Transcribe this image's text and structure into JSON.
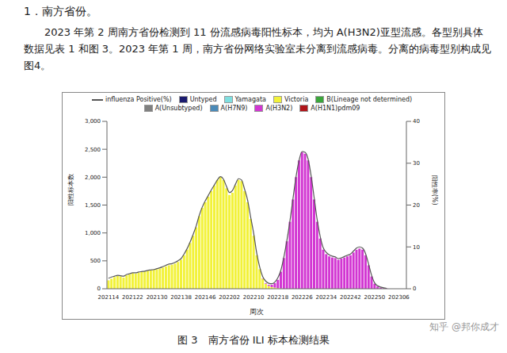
{
  "heading": "1．南方省份。",
  "paragraph": "2023 年第 2 周南方省份检测到 11 份流感病毒阳性标本，均为 A(H3N2)亚型流感。各型别具体数据见表 1 和图 3。2023 年第 1 周，南方省份网络实验室未分离到流感病毒。分离的病毒型别构成见图4。",
  "caption": "图 3　南方省份 ILI 标本检测结果",
  "watermark": "知乎 @邦你成才",
  "chart_data": {
    "type": "bar",
    "stacked": true,
    "grid": false,
    "legend": "top",
    "x_label": "周次",
    "y_label": "阳性标本数",
    "y2_label": "阳性率(%)",
    "categories": [
      "202114",
      null,
      null,
      null,
      null,
      null,
      null,
      null,
      "202122",
      null,
      null,
      null,
      null,
      null,
      null,
      null,
      "202130",
      null,
      null,
      null,
      null,
      null,
      null,
      null,
      "202138",
      null,
      null,
      null,
      null,
      null,
      null,
      null,
      "202146",
      null,
      null,
      null,
      null,
      null,
      null,
      null,
      "202202",
      null,
      null,
      null,
      null,
      null,
      null,
      null,
      "202210",
      null,
      null,
      null,
      null,
      null,
      null,
      null,
      "202218",
      null,
      null,
      null,
      null,
      null,
      null,
      null,
      "202226",
      null,
      null,
      null,
      null,
      null,
      null,
      null,
      "202234",
      null,
      null,
      null,
      null,
      null,
      null,
      null,
      "202242",
      null,
      null,
      null,
      null,
      null,
      null,
      null,
      "202250",
      null,
      null,
      null,
      null,
      null,
      null,
      null,
      "202306",
      null,
      null
    ],
    "ylim": [
      0,
      3000
    ],
    "yticks": [
      0,
      500,
      {
        "value": 1000,
        "label": "1,000"
      },
      {
        "value": 1500,
        "label": "1,500"
      },
      {
        "value": 2000,
        "label": "2,000"
      },
      {
        "value": 2500,
        "label": "2,500"
      },
      {
        "value": 3000,
        "label": "3,000"
      }
    ],
    "y2lim": [
      0,
      40
    ],
    "y2ticks": [
      0,
      10,
      20,
      30,
      40
    ],
    "series": [
      {
        "name": "influenza Positive(%)",
        "type": "line",
        "axis": "y2",
        "color": "#555555",
        "values": [
          2.5,
          2.8,
          3.0,
          3.2,
          3.1,
          3.0,
          3.4,
          3.6,
          3.8,
          3.8,
          4.0,
          4.1,
          4.2,
          4.4,
          4.5,
          4.6,
          4.8,
          5.0,
          5.3,
          5.6,
          5.9,
          6.0,
          6.3,
          6.7,
          7.2,
          8.3,
          9.6,
          11.2,
          13.0,
          15.0,
          17.5,
          19.5,
          21.0,
          22.3,
          23.6,
          24.8,
          26.0,
          26.8,
          26.2,
          24.5,
          23.0,
          23.5,
          25.0,
          26.3,
          26.0,
          23.8,
          21.2,
          17.2,
          13.3,
          8.6,
          5.2,
          2.9,
          1.8,
          1.3,
          1.2,
          1.6,
          2.6,
          4.4,
          7.6,
          11.6,
          16.2,
          21.5,
          26.7,
          30.6,
          32.8,
          32.6,
          31.0,
          27.0,
          21.8,
          16.5,
          12.5,
          9.8,
          8.7,
          8.1,
          7.8,
          7.6,
          7.2,
          7.4,
          7.7,
          8.0,
          8.3,
          9.0,
          9.7,
          10.0,
          9.7,
          8.4,
          5.9,
          3.2,
          1.4,
          0.7,
          0.4,
          0.2,
          0.1,
          null,
          null,
          null,
          null,
          null,
          null
        ]
      },
      {
        "name": "Untyped",
        "type": "bar",
        "color": "#1a1a6e",
        "values": [
          0,
          0,
          0,
          0,
          0,
          0,
          0,
          0,
          0,
          0,
          0,
          0,
          0,
          0,
          0,
          0,
          0,
          0,
          0,
          0,
          0,
          0,
          0,
          0,
          0,
          0,
          0,
          0,
          0,
          0,
          0,
          0,
          0,
          0,
          0,
          0,
          0,
          0,
          0,
          0,
          0,
          0,
          0,
          0,
          0,
          0,
          0,
          0,
          0,
          0,
          0,
          0,
          0,
          0,
          0,
          0,
          0,
          0,
          0,
          0,
          0,
          0,
          0,
          0,
          0,
          0,
          0,
          0,
          0,
          0,
          0,
          0,
          0,
          0,
          0,
          0,
          0,
          0,
          0,
          0,
          0,
          0,
          0,
          0,
          0,
          0,
          0,
          0,
          0,
          0,
          0,
          0,
          0,
          null,
          null,
          null,
          null,
          null,
          null
        ]
      },
      {
        "name": "Yamagata",
        "type": "bar",
        "color": "#7fdfe0",
        "values": [
          0,
          0,
          0,
          0,
          0,
          0,
          0,
          0,
          0,
          0,
          0,
          0,
          0,
          0,
          0,
          0,
          0,
          0,
          0,
          0,
          0,
          0,
          0,
          0,
          0,
          0,
          0,
          0,
          0,
          0,
          0,
          0,
          0,
          0,
          0,
          0,
          0,
          0,
          0,
          0,
          0,
          0,
          0,
          0,
          0,
          0,
          0,
          0,
          0,
          0,
          0,
          0,
          0,
          0,
          0,
          0,
          0,
          0,
          0,
          0,
          0,
          0,
          0,
          0,
          0,
          0,
          0,
          0,
          0,
          0,
          0,
          0,
          0,
          0,
          0,
          0,
          0,
          0,
          0,
          0,
          0,
          0,
          0,
          0,
          0,
          0,
          0,
          0,
          0,
          0,
          0,
          0,
          0,
          null,
          null,
          null,
          null,
          null,
          null
        ]
      },
      {
        "name": "Victoria",
        "type": "bar",
        "color": "#f2f23a",
        "values": [
          150,
          180,
          210,
          230,
          220,
          200,
          240,
          260,
          280,
          270,
          290,
          300,
          310,
          320,
          330,
          340,
          350,
          360,
          380,
          400,
          420,
          430,
          450,
          480,
          520,
          600,
          700,
          820,
          950,
          1100,
          1300,
          1450,
          1550,
          1650,
          1750,
          1850,
          1950,
          2000,
          1950,
          1800,
          1680,
          1720,
          1850,
          1950,
          1930,
          1750,
          1550,
          1250,
          950,
          600,
          350,
          180,
          90,
          50,
          30,
          20,
          10,
          5,
          0,
          0,
          0,
          0,
          0,
          0,
          0,
          0,
          0,
          0,
          0,
          0,
          0,
          0,
          0,
          0,
          0,
          0,
          0,
          0,
          0,
          0,
          0,
          0,
          0,
          0,
          0,
          0,
          0,
          0,
          0,
          0,
          0,
          0,
          0,
          null,
          null,
          null,
          null,
          null,
          null
        ]
      },
      {
        "name": "B(Lineage not determined)",
        "type": "bar",
        "color": "#3aa63a",
        "values": [
          0,
          0,
          0,
          0,
          0,
          0,
          0,
          0,
          0,
          0,
          0,
          0,
          0,
          0,
          0,
          0,
          0,
          0,
          0,
          0,
          0,
          0,
          0,
          0,
          0,
          0,
          0,
          0,
          0,
          0,
          0,
          0,
          0,
          0,
          0,
          0,
          0,
          0,
          0,
          0,
          0,
          0,
          0,
          0,
          0,
          0,
          0,
          0,
          0,
          0,
          0,
          0,
          0,
          0,
          0,
          0,
          0,
          0,
          0,
          0,
          0,
          0,
          0,
          0,
          0,
          0,
          0,
          0,
          0,
          0,
          0,
          0,
          0,
          0,
          0,
          0,
          0,
          0,
          0,
          0,
          0,
          0,
          0,
          0,
          0,
          0,
          0,
          0,
          0,
          0,
          0,
          0,
          0,
          null,
          null,
          null,
          null,
          null,
          null
        ]
      },
      {
        "name": "A(Unsubtyped)",
        "type": "bar",
        "color": "#808080",
        "values": [
          0,
          0,
          0,
          0,
          0,
          0,
          0,
          0,
          0,
          0,
          0,
          0,
          0,
          0,
          0,
          0,
          0,
          0,
          0,
          0,
          0,
          0,
          0,
          0,
          0,
          0,
          0,
          0,
          0,
          0,
          0,
          0,
          0,
          0,
          0,
          0,
          0,
          0,
          0,
          0,
          0,
          0,
          0,
          0,
          0,
          0,
          0,
          0,
          0,
          0,
          0,
          0,
          0,
          0,
          0,
          0,
          0,
          0,
          0,
          0,
          0,
          0,
          0,
          0,
          0,
          0,
          0,
          0,
          0,
          0,
          0,
          0,
          0,
          0,
          0,
          0,
          0,
          0,
          0,
          0,
          0,
          0,
          0,
          0,
          0,
          0,
          0,
          0,
          0,
          0,
          0,
          0,
          0,
          null,
          null,
          null,
          null,
          null,
          null
        ]
      },
      {
        "name": "A(H7N9)",
        "type": "bar",
        "color": "#4a8ab8",
        "values": [
          0,
          0,
          0,
          0,
          0,
          0,
          0,
          0,
          0,
          0,
          0,
          0,
          0,
          0,
          0,
          0,
          0,
          0,
          0,
          0,
          0,
          0,
          0,
          0,
          0,
          0,
          0,
          0,
          0,
          0,
          0,
          0,
          0,
          0,
          0,
          0,
          0,
          0,
          0,
          0,
          0,
          0,
          0,
          0,
          0,
          0,
          0,
          0,
          0,
          0,
          0,
          0,
          0,
          0,
          0,
          0,
          0,
          0,
          0,
          0,
          0,
          0,
          0,
          0,
          0,
          0,
          0,
          0,
          0,
          0,
          0,
          0,
          0,
          0,
          0,
          0,
          0,
          0,
          0,
          0,
          0,
          0,
          0,
          0,
          0,
          0,
          0,
          0,
          0,
          0,
          0,
          0,
          0,
          null,
          null,
          null,
          null,
          null,
          null
        ]
      },
      {
        "name": "A(H3N2)",
        "type": "bar",
        "color": "#d236d2",
        "values": [
          0,
          0,
          0,
          0,
          0,
          0,
          0,
          0,
          0,
          0,
          0,
          0,
          0,
          0,
          0,
          0,
          0,
          0,
          0,
          0,
          0,
          0,
          0,
          0,
          0,
          0,
          0,
          0,
          0,
          0,
          0,
          0,
          0,
          0,
          0,
          0,
          0,
          0,
          0,
          0,
          0,
          0,
          0,
          0,
          0,
          0,
          0,
          0,
          0,
          0,
          0,
          5,
          10,
          20,
          40,
          80,
          150,
          300,
          550,
          850,
          1200,
          1600,
          2000,
          2300,
          2450,
          2420,
          2300,
          2000,
          1600,
          1200,
          900,
          700,
          620,
          580,
          560,
          550,
          520,
          540,
          560,
          580,
          600,
          650,
          700,
          720,
          700,
          600,
          420,
          220,
          90,
          40,
          20,
          10,
          5,
          null,
          null,
          null,
          null,
          null,
          null
        ]
      },
      {
        "name": "A(H1N1)pdm09",
        "type": "bar",
        "color": "#b0151a",
        "values": [
          0,
          0,
          0,
          0,
          0,
          0,
          0,
          0,
          0,
          0,
          0,
          0,
          0,
          0,
          0,
          0,
          0,
          0,
          0,
          0,
          0,
          0,
          0,
          0,
          0,
          0,
          0,
          0,
          0,
          0,
          0,
          0,
          0,
          0,
          0,
          0,
          0,
          0,
          0,
          0,
          0,
          0,
          0,
          0,
          0,
          0,
          0,
          0,
          0,
          0,
          0,
          0,
          0,
          0,
          0,
          0,
          0,
          0,
          0,
          0,
          0,
          0,
          0,
          0,
          0,
          0,
          0,
          0,
          0,
          0,
          0,
          0,
          0,
          0,
          0,
          0,
          0,
          0,
          0,
          0,
          0,
          0,
          0,
          0,
          0,
          0,
          0,
          0,
          0,
          0,
          0,
          0,
          0,
          null,
          null,
          null,
          null,
          null,
          null
        ]
      }
    ]
  }
}
